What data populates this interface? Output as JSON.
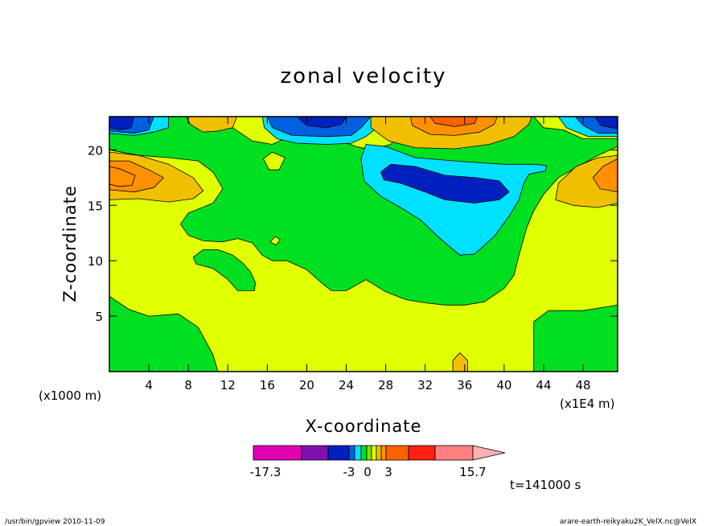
{
  "chart_data": {
    "type": "heatmap",
    "title": "zonal velocity",
    "xlabel": "X-coordinate",
    "ylabel": "Z-coordinate",
    "x_scale_note": "(x1E4 m)",
    "y_scale_note": "(x1000 m)",
    "xlim": [
      0,
      51.5
    ],
    "ylim": [
      0,
      23
    ],
    "x_ticks": [
      4,
      8,
      12,
      16,
      20,
      24,
      28,
      32,
      36,
      40,
      44,
      48
    ],
    "y_ticks": [
      5,
      10,
      15,
      20
    ],
    "colorbar": {
      "colors": [
        "#e000b0",
        "#8010b0",
        "#0020c0",
        "#0060e0",
        "#00e0ff",
        "#00e020",
        "#80e000",
        "#e0ff00",
        "#f0c000",
        "#ff9000",
        "#ff6000",
        "#ff2010",
        "#ff8080",
        "#ffb0b0"
      ],
      "labels": [
        {
          "text": "-17.3",
          "value": -17.3
        },
        {
          "text": "-3",
          "value": -3
        },
        {
          "text": "0",
          "value": 0
        },
        {
          "text": "3",
          "value": 3
        },
        {
          "text": "15.7",
          "value": 15.7
        }
      ]
    },
    "time_label": "t=141000 s",
    "contours": [
      {
        "fill": "#e0ff00",
        "level": "0 to 3",
        "points": [
          [
            0,
            0
          ],
          [
            51.5,
            0
          ],
          [
            51.5,
            23
          ],
          [
            0,
            23
          ]
        ]
      },
      {
        "fill": "#00e020",
        "level": "-3 to 0",
        "points": [
          [
            0,
            6.8
          ],
          [
            2,
            5.6
          ],
          [
            4,
            5
          ],
          [
            7,
            5.2
          ],
          [
            9,
            4
          ],
          [
            10.5,
            1.5
          ],
          [
            11,
            0
          ],
          [
            0,
            0
          ]
        ]
      },
      {
        "fill": "#00e020",
        "level": "-3 to 0",
        "points": [
          [
            43,
            0
          ],
          [
            43,
            4.5
          ],
          [
            44.5,
            5.5
          ],
          [
            48,
            5.5
          ],
          [
            51.5,
            6
          ],
          [
            51.5,
            0
          ]
        ]
      },
      {
        "fill": "#f0c000",
        "level": "3 to 6",
        "points": [
          [
            34.8,
            0
          ],
          [
            34.8,
            1
          ],
          [
            35.5,
            1.7
          ],
          [
            36.3,
            1
          ],
          [
            36.3,
            0
          ]
        ]
      },
      {
        "fill": "#00e020",
        "level": "-3 to 0",
        "points": [
          [
            0,
            20
          ],
          [
            3,
            19.5
          ],
          [
            6,
            19.3
          ],
          [
            9,
            19
          ],
          [
            10.5,
            18
          ],
          [
            11.5,
            16.5
          ],
          [
            10.5,
            15.2
          ],
          [
            8,
            14.3
          ],
          [
            7.2,
            13.3
          ],
          [
            8,
            12.3
          ],
          [
            9.5,
            11.8
          ],
          [
            11.5,
            11.7
          ],
          [
            13,
            12
          ],
          [
            14.5,
            11.6
          ],
          [
            15.5,
            10.5
          ],
          [
            16.5,
            10
          ],
          [
            18,
            10
          ],
          [
            20,
            9.2
          ],
          [
            21.5,
            8
          ],
          [
            22.5,
            7.3
          ],
          [
            24,
            7.3
          ],
          [
            26,
            8.3
          ],
          [
            28,
            7.2
          ],
          [
            30,
            6.5
          ],
          [
            32,
            6.2
          ],
          [
            34,
            6
          ],
          [
            36,
            6
          ],
          [
            38,
            6.3
          ],
          [
            40,
            7.5
          ],
          [
            41,
            8.7
          ],
          [
            41.5,
            10.5
          ],
          [
            42.3,
            13
          ],
          [
            43,
            14.5
          ],
          [
            44,
            16
          ],
          [
            45.5,
            17.5
          ],
          [
            47.5,
            18.5
          ],
          [
            49.5,
            19.5
          ],
          [
            51.5,
            20.3
          ],
          [
            51.5,
            21
          ],
          [
            48,
            21
          ],
          [
            46,
            21.8
          ],
          [
            44,
            22
          ],
          [
            43,
            23
          ],
          [
            31.5,
            23
          ],
          [
            30.5,
            22.5
          ],
          [
            29.5,
            21.5
          ],
          [
            28.5,
            20.5
          ],
          [
            26.5,
            20
          ],
          [
            25,
            20.3
          ],
          [
            23.5,
            20.8
          ],
          [
            21.5,
            21.3
          ],
          [
            18.5,
            21.3
          ],
          [
            16.5,
            20.5
          ],
          [
            14.5,
            20.8
          ],
          [
            12.5,
            22
          ],
          [
            11.2,
            23
          ],
          [
            0,
            23
          ]
        ]
      },
      {
        "fill": "#00e020",
        "level": "-3 to 0",
        "points": [
          [
            8.5,
            10.3
          ],
          [
            9.5,
            11
          ],
          [
            11,
            11
          ],
          [
            12.5,
            10.5
          ],
          [
            13.5,
            9.8
          ],
          [
            14.3,
            9
          ],
          [
            14.8,
            8
          ],
          [
            14.7,
            7.3
          ],
          [
            13,
            7.3
          ],
          [
            12,
            8.3
          ],
          [
            10.5,
            9.3
          ],
          [
            8.8,
            9.7
          ]
        ]
      },
      {
        "fill": "#e0ff00",
        "level": "0 to 3",
        "points": [
          [
            15.6,
            19.2
          ],
          [
            16.5,
            19.8
          ],
          [
            17.8,
            19.3
          ],
          [
            17.2,
            18.2
          ],
          [
            16.2,
            18.2
          ]
        ]
      },
      {
        "fill": "#e0ff00",
        "level": "0 to 3",
        "points": [
          [
            16.3,
            11.7
          ],
          [
            16.8,
            12.2
          ],
          [
            17.3,
            11.9
          ],
          [
            16.9,
            11.4
          ]
        ]
      },
      {
        "fill": "#00e0ff",
        "level": "-6 to -3",
        "points": [
          [
            25.5,
            19.2
          ],
          [
            26,
            20.5
          ],
          [
            28,
            20.3
          ],
          [
            31,
            19.3
          ],
          [
            35,
            19
          ],
          [
            40,
            18.7
          ],
          [
            43,
            18.7
          ],
          [
            44.3,
            18.6
          ],
          [
            44.2,
            18.1
          ],
          [
            42.5,
            17.8
          ],
          [
            42,
            17
          ],
          [
            41.5,
            15.5
          ],
          [
            40.5,
            14
          ],
          [
            39,
            12.2
          ],
          [
            37,
            10.6
          ],
          [
            35.5,
            10.5
          ],
          [
            33.5,
            12
          ],
          [
            31.5,
            13.7
          ],
          [
            29.5,
            14.8
          ],
          [
            27.5,
            15.8
          ],
          [
            25.8,
            17.2
          ]
        ]
      },
      {
        "fill": "#0020c0",
        "level": "-12 to -9",
        "points": [
          [
            27.5,
            18
          ],
          [
            28.5,
            18.7
          ],
          [
            31,
            18.5
          ],
          [
            34,
            17.7
          ],
          [
            37,
            17.5
          ],
          [
            39.5,
            17.2
          ],
          [
            40.5,
            16.2
          ],
          [
            39.5,
            15.5
          ],
          [
            37,
            15.2
          ],
          [
            34,
            15.5
          ],
          [
            32,
            16.2
          ],
          [
            29.5,
            17
          ],
          [
            27.8,
            17.3
          ]
        ]
      },
      {
        "fill": "#f0c000",
        "level": "3 to 6",
        "points": [
          [
            0,
            19.8
          ],
          [
            3,
            19.5
          ],
          [
            6,
            18.7
          ],
          [
            8.5,
            17.5
          ],
          [
            9.5,
            16.3
          ],
          [
            8.5,
            15.6
          ],
          [
            6,
            15.3
          ],
          [
            3,
            15.6
          ],
          [
            0,
            15.5
          ]
        ]
      },
      {
        "fill": "#ff9000",
        "level": "6 to 9",
        "points": [
          [
            0,
            19
          ],
          [
            2,
            19
          ],
          [
            4,
            18.2
          ],
          [
            5.5,
            17.5
          ],
          [
            4.5,
            16.6
          ],
          [
            2.5,
            16.2
          ],
          [
            0,
            16.4
          ]
        ]
      },
      {
        "fill": "#ff9000",
        "level": "6 to 9",
        "points": [
          [
            0,
            18.5
          ],
          [
            1,
            18.3
          ],
          [
            2.6,
            17.7
          ],
          [
            2.3,
            16.8
          ],
          [
            1,
            16.7
          ],
          [
            0,
            16.9
          ]
        ]
      },
      {
        "fill": "#f0c000",
        "level": "3 to 6",
        "points": [
          [
            51.5,
            19.5
          ],
          [
            49.5,
            19.3
          ],
          [
            47.3,
            18.5
          ],
          [
            45.5,
            17
          ],
          [
            45.2,
            15.5
          ],
          [
            47,
            15
          ],
          [
            49.5,
            14.8
          ],
          [
            51.5,
            15.2
          ]
        ]
      },
      {
        "fill": "#ff9000",
        "level": "6 to 9",
        "points": [
          [
            51.5,
            19.2
          ],
          [
            50,
            18.5
          ],
          [
            49,
            17.5
          ],
          [
            49.7,
            16.5
          ],
          [
            51.5,
            16.2
          ]
        ]
      },
      {
        "fill": "#00e0ff",
        "level": "-6 to -3",
        "points": [
          [
            0,
            23
          ],
          [
            6,
            23
          ],
          [
            6,
            22
          ],
          [
            4.5,
            21.6
          ],
          [
            2.5,
            21.3
          ],
          [
            0,
            21.5
          ]
        ]
      },
      {
        "fill": "#0060e0",
        "level": "-9 to -6",
        "points": [
          [
            0,
            23
          ],
          [
            4.5,
            23
          ],
          [
            4,
            21.8
          ],
          [
            2.5,
            21.5
          ],
          [
            0,
            21.7
          ]
        ]
      },
      {
        "fill": "#0020c0",
        "level": "-12 to -9",
        "points": [
          [
            0,
            23
          ],
          [
            2.5,
            23
          ],
          [
            2.2,
            22
          ],
          [
            1,
            21.8
          ],
          [
            0,
            22
          ]
        ]
      },
      {
        "fill": "#f0c000",
        "level": "3 to 6",
        "points": [
          [
            7.8,
            23
          ],
          [
            8.2,
            22.3
          ],
          [
            9.5,
            21.6
          ],
          [
            11,
            21.7
          ],
          [
            12.5,
            22
          ],
          [
            12.9,
            23
          ]
        ]
      },
      {
        "fill": "#00e0ff",
        "level": "-6 to -3",
        "points": [
          [
            15.5,
            23
          ],
          [
            15.7,
            22
          ],
          [
            17,
            21
          ],
          [
            19,
            20.6
          ],
          [
            22,
            20.5
          ],
          [
            24.5,
            20.6
          ],
          [
            26,
            21.2
          ],
          [
            27.4,
            22.2
          ],
          [
            27.8,
            23
          ]
        ]
      },
      {
        "fill": "#0060e0",
        "level": "-9 to -6",
        "points": [
          [
            16,
            23
          ],
          [
            16.5,
            22
          ],
          [
            18.5,
            21.3
          ],
          [
            22,
            21.2
          ],
          [
            24.5,
            21.3
          ],
          [
            25.5,
            22
          ],
          [
            26.5,
            23
          ]
        ]
      },
      {
        "fill": "#0020c0",
        "level": "-12 to -9",
        "points": [
          [
            19,
            23
          ],
          [
            20,
            22.2
          ],
          [
            22,
            22
          ],
          [
            23.5,
            22.3
          ],
          [
            24,
            23
          ]
        ]
      },
      {
        "fill": "#f0c000",
        "level": "3 to 6",
        "points": [
          [
            26.5,
            23
          ],
          [
            26.5,
            22
          ],
          [
            28.3,
            20.8
          ],
          [
            31,
            20.2
          ],
          [
            35,
            20.1
          ],
          [
            38.5,
            20.5
          ],
          [
            41,
            21.2
          ],
          [
            42.5,
            22.3
          ],
          [
            42.8,
            23
          ]
        ]
      },
      {
        "fill": "#ff9000",
        "level": "6 to 9",
        "points": [
          [
            30.5,
            23
          ],
          [
            30.7,
            22.2
          ],
          [
            32.5,
            21.4
          ],
          [
            35,
            21.3
          ],
          [
            37.5,
            21.6
          ],
          [
            39,
            22.3
          ],
          [
            39.3,
            23
          ]
        ]
      },
      {
        "fill": "#ff6000",
        "level": "9 to 12",
        "points": [
          [
            32.5,
            23
          ],
          [
            33,
            22.4
          ],
          [
            35,
            22.1
          ],
          [
            37,
            22.4
          ],
          [
            37.3,
            23
          ]
        ]
      },
      {
        "fill": "#00e0ff",
        "level": "-6 to -3",
        "points": [
          [
            51.5,
            23
          ],
          [
            45.5,
            23
          ],
          [
            46.3,
            22
          ],
          [
            48.5,
            21.2
          ],
          [
            51.5,
            21.2
          ]
        ]
      },
      {
        "fill": "#0060e0",
        "level": "-9 to -6",
        "points": [
          [
            51.5,
            23
          ],
          [
            47.2,
            23
          ],
          [
            48,
            22.2
          ],
          [
            49.5,
            21.5
          ],
          [
            51.5,
            21.5
          ]
        ]
      },
      {
        "fill": "#0020c0",
        "level": "-12 to -9",
        "points": [
          [
            51.5,
            23
          ],
          [
            49.2,
            23
          ],
          [
            49.8,
            22.2
          ],
          [
            51.5,
            21.9
          ]
        ]
      }
    ]
  },
  "footer": {
    "left": "/usr/bin/gpview  2010-11-09",
    "right": "arare-earth-reikyaku2K_VelX.nc@VelX"
  }
}
